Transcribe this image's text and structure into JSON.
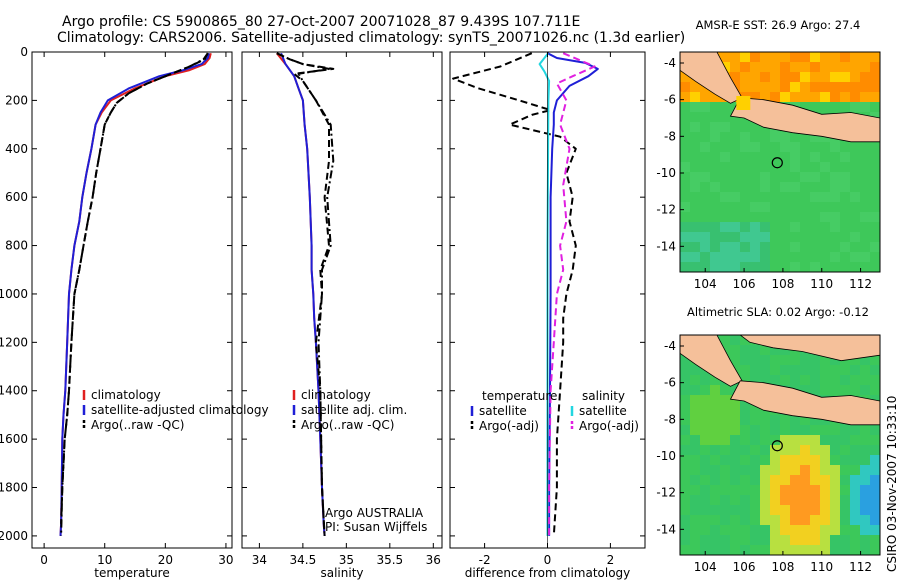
{
  "title": {
    "line1": "Argo profile: CS 5900865_80 27-Oct-2007 20071028_87 9.439S 107.711E",
    "line2": "Climatology: CARS2006. Satellite-adjusted climatology: synTS_20071026.nc (1.3d earlier)"
  },
  "credit": "CSIRO 03-Nov-2007 10:33:10",
  "colors": {
    "climatology": "#e02020",
    "satellite": "#1f1fd6",
    "argo": "#000000",
    "sal_satellite": "#22d6e0",
    "sal_argo": "#e020e0",
    "land": "#f5c09a",
    "sea_green": "#3cc85a"
  },
  "chart_data": [
    {
      "id": "temperature",
      "type": "line",
      "xlabel": "temperature",
      "ylabel": "",
      "xlim": [
        -2,
        31
      ],
      "ylim": [
        2050,
        0
      ],
      "xticks": [
        0,
        10,
        20,
        30
      ],
      "yticks": [
        0,
        200,
        400,
        600,
        800,
        1000,
        1200,
        1400,
        1600,
        1800,
        2000
      ],
      "legend": {
        "position": "lower-right",
        "entries": [
          "climatology",
          "satellite-adjusted climatology",
          "Argo(..raw -QC)"
        ]
      },
      "series": [
        {
          "name": "climatology",
          "style": "solid",
          "color_key": "climatology",
          "x": [
            27.5,
            27.3,
            26.5,
            24,
            20,
            15,
            11,
            9.5,
            8.5,
            7.8,
            7,
            6.3,
            5.8,
            5,
            4.5,
            4.1,
            3.8,
            3.5,
            3.2,
            3,
            2.9,
            2.8,
            2.7
          ],
          "y": [
            5,
            25,
            50,
            75,
            100,
            150,
            200,
            250,
            300,
            400,
            500,
            600,
            700,
            800,
            900,
            1000,
            1200,
            1400,
            1500,
            1600,
            1800,
            1950,
            2000
          ]
        },
        {
          "name": "satellite-adjusted climatology",
          "style": "solid",
          "color_key": "satellite",
          "x": [
            27.2,
            27,
            26,
            23,
            19,
            14,
            10.5,
            9.3,
            8.5,
            7.8,
            7,
            6.3,
            5.8,
            5,
            4.5,
            4.1,
            3.8,
            3.5,
            3.2,
            3,
            2.9,
            2.8,
            2.7
          ],
          "y": [
            5,
            25,
            50,
            75,
            100,
            150,
            200,
            250,
            300,
            400,
            500,
            600,
            700,
            800,
            900,
            1000,
            1200,
            1400,
            1500,
            1600,
            1800,
            1950,
            2000
          ]
        },
        {
          "name": "Argo(..raw -QC)",
          "style": "dash",
          "color_key": "argo",
          "x": [
            27,
            26.5,
            24,
            21,
            17,
            14,
            12,
            11,
            10,
            9.3,
            8.6,
            8,
            7.2,
            6.5,
            5.8,
            5,
            4.5,
            4.1,
            3.8,
            3.4,
            3,
            2.8
          ],
          "y": [
            5,
            30,
            60,
            90,
            130,
            170,
            210,
            250,
            300,
            400,
            500,
            600,
            700,
            800,
            900,
            1000,
            1200,
            1400,
            1500,
            1600,
            1800,
            1950
          ]
        },
        {
          "name": "Argo (-adj)",
          "style": "dashdot",
          "color_key": "argo",
          "x": [
            27,
            26.3,
            24,
            21,
            17,
            14,
            12,
            11,
            10,
            9.3,
            8.6,
            8,
            7.2,
            6.5,
            5.8,
            5,
            4.5,
            4.1,
            3.8,
            3.4,
            3,
            2.8
          ],
          "y": [
            5,
            30,
            60,
            90,
            130,
            170,
            210,
            250,
            300,
            400,
            500,
            600,
            700,
            800,
            900,
            1000,
            1200,
            1400,
            1500,
            1600,
            1800,
            2000
          ]
        }
      ]
    },
    {
      "id": "salinity",
      "type": "line",
      "xlabel": "salinity",
      "ylabel": "",
      "xlim": [
        33.8,
        36.1
      ],
      "ylim": [
        2050,
        0
      ],
      "xticks": [
        34,
        34.5,
        35,
        35.5,
        36
      ],
      "legend": {
        "position": "lower-right",
        "entries": [
          "climatology",
          "satellite adj. clim.",
          "Argo(..raw -QC)"
        ]
      },
      "annotations": [
        "Argo AUSTRALIA",
        "PI: Susan Wijffels"
      ],
      "series": [
        {
          "name": "climatology",
          "style": "solid",
          "color_key": "climatology",
          "x": [
            34.2,
            34.3,
            34.4,
            34.45,
            34.5,
            34.52,
            34.55,
            34.58,
            34.6,
            34.6,
            34.62,
            34.63,
            34.65,
            34.68,
            34.7,
            34.72,
            34.74,
            34.75
          ],
          "y": [
            5,
            50,
            100,
            150,
            200,
            300,
            400,
            600,
            800,
            900,
            1000,
            1100,
            1200,
            1400,
            1600,
            1800,
            1950,
            2000
          ]
        },
        {
          "name": "satellite adj. clim.",
          "style": "solid",
          "color_key": "satellite",
          "x": [
            34.25,
            34.3,
            34.4,
            34.45,
            34.5,
            34.52,
            34.55,
            34.58,
            34.6,
            34.6,
            34.62,
            34.63,
            34.65,
            34.68,
            34.7,
            34.72,
            34.74,
            34.75
          ],
          "y": [
            5,
            50,
            100,
            150,
            200,
            300,
            400,
            600,
            800,
            900,
            1000,
            1100,
            1200,
            1400,
            1600,
            1800,
            1950,
            2000
          ]
        },
        {
          "name": "Argo(..raw -QC)",
          "style": "dash",
          "color_key": "argo",
          "x": [
            34.2,
            34.35,
            34.5,
            34.85,
            34.4,
            34.5,
            34.65,
            34.8,
            34.8,
            34.75,
            34.8,
            34.7,
            34.72,
            34.65,
            34.7,
            34.72,
            34.75
          ],
          "y": [
            5,
            30,
            50,
            70,
            90,
            120,
            200,
            300,
            450,
            600,
            800,
            900,
            1000,
            1200,
            1400,
            1800,
            2000
          ]
        },
        {
          "name": "Argo (-adj)",
          "style": "dashdot",
          "color_key": "argo",
          "x": [
            34.2,
            34.35,
            34.5,
            34.8,
            34.45,
            34.5,
            34.65,
            34.82,
            34.85,
            34.78,
            34.82,
            34.72,
            34.72,
            34.68,
            34.7,
            34.72,
            34.75
          ],
          "y": [
            5,
            30,
            50,
            70,
            90,
            120,
            200,
            300,
            450,
            600,
            800,
            900,
            1000,
            1200,
            1400,
            1800,
            2000
          ]
        }
      ]
    },
    {
      "id": "difference",
      "type": "line",
      "xlabel": "difference from climatology",
      "ylabel": "",
      "xlim": [
        -3.1,
        3.1
      ],
      "ylim": [
        2050,
        0
      ],
      "xticks": [
        -2,
        0,
        2
      ],
      "legend": {
        "position": "lower-center",
        "columns": [
          {
            "heading": "temperature",
            "entries": [
              "satellite",
              "Argo(-adj)"
            ]
          },
          {
            "heading": "salinity",
            "entries": [
              "satellite",
              "Argo(-adj)"
            ]
          }
        ]
      },
      "series": [
        {
          "name": "temperature satellite",
          "style": "solid",
          "color_key": "satellite",
          "x": [
            0,
            0.3,
            1.2,
            1.6,
            1.3,
            0.7,
            0.3,
            0.2,
            0.2,
            0.15,
            0.1,
            0.1,
            0.1,
            0.08,
            0.05,
            0.05
          ],
          "y": [
            5,
            25,
            45,
            70,
            100,
            140,
            200,
            250,
            300,
            400,
            600,
            800,
            1000,
            1400,
            1800,
            2000
          ]
        },
        {
          "name": "temperature Argo(-adj)",
          "style": "dash",
          "color_key": "argo",
          "x": [
            -0.5,
            -1.5,
            -3,
            -2.2,
            -0.9,
            0.1,
            -0.5,
            -1.2,
            0.4,
            0.9,
            0.6,
            0.8,
            0.7,
            0.9,
            0.8,
            0.6,
            0.5,
            0.5,
            0.4,
            0.3,
            0.3,
            0.2
          ],
          "y": [
            5,
            60,
            110,
            150,
            200,
            240,
            260,
            300,
            350,
            400,
            500,
            600,
            700,
            800,
            900,
            1000,
            1100,
            1200,
            1400,
            1600,
            1800,
            2000
          ]
        },
        {
          "name": "salinity satellite",
          "style": "solid",
          "color_key": "sal_satellite",
          "x": [
            0.02,
            -0.25,
            -0.1,
            0.05,
            0.03,
            0.02,
            0,
            0,
            0,
            0
          ],
          "y": [
            5,
            50,
            80,
            120,
            200,
            400,
            800,
            1200,
            1600,
            2000
          ]
        },
        {
          "name": "salinity Argo(-adj)",
          "style": "dash",
          "color_key": "sal_argo",
          "x": [
            0.5,
            1.5,
            0.8,
            0.3,
            0.6,
            0.4,
            0.7,
            0.5,
            0.6,
            0.4,
            0.5,
            0.3,
            0.2,
            0.1,
            0.05,
            0.05
          ],
          "y": [
            5,
            60,
            100,
            130,
            200,
            300,
            400,
            550,
            700,
            800,
            900,
            1000,
            1200,
            1400,
            1800,
            2000
          ]
        }
      ]
    },
    {
      "id": "sst-map",
      "type": "heatmap",
      "title": "AMSR-E SST: 26.9 Argo: 27.4",
      "xlim": [
        102.7,
        113
      ],
      "ylim": [
        -15.4,
        -3.4
      ],
      "xticks": [
        104,
        106,
        108,
        110,
        112
      ],
      "yticks": [
        -4,
        -6,
        -8,
        -10,
        -12,
        -14
      ],
      "marker": {
        "lon": 107.711,
        "lat": -9.439
      }
    },
    {
      "id": "sla-map",
      "type": "heatmap",
      "title": "Altimetric SLA: 0.02 Argo: -0.12",
      "xlim": [
        102.7,
        113
      ],
      "ylim": [
        -15.4,
        -3.4
      ],
      "xticks": [
        104,
        106,
        108,
        110,
        112
      ],
      "yticks": [
        -4,
        -6,
        -8,
        -10,
        -12,
        -14
      ],
      "marker": {
        "lon": 107.711,
        "lat": -9.439
      }
    }
  ]
}
